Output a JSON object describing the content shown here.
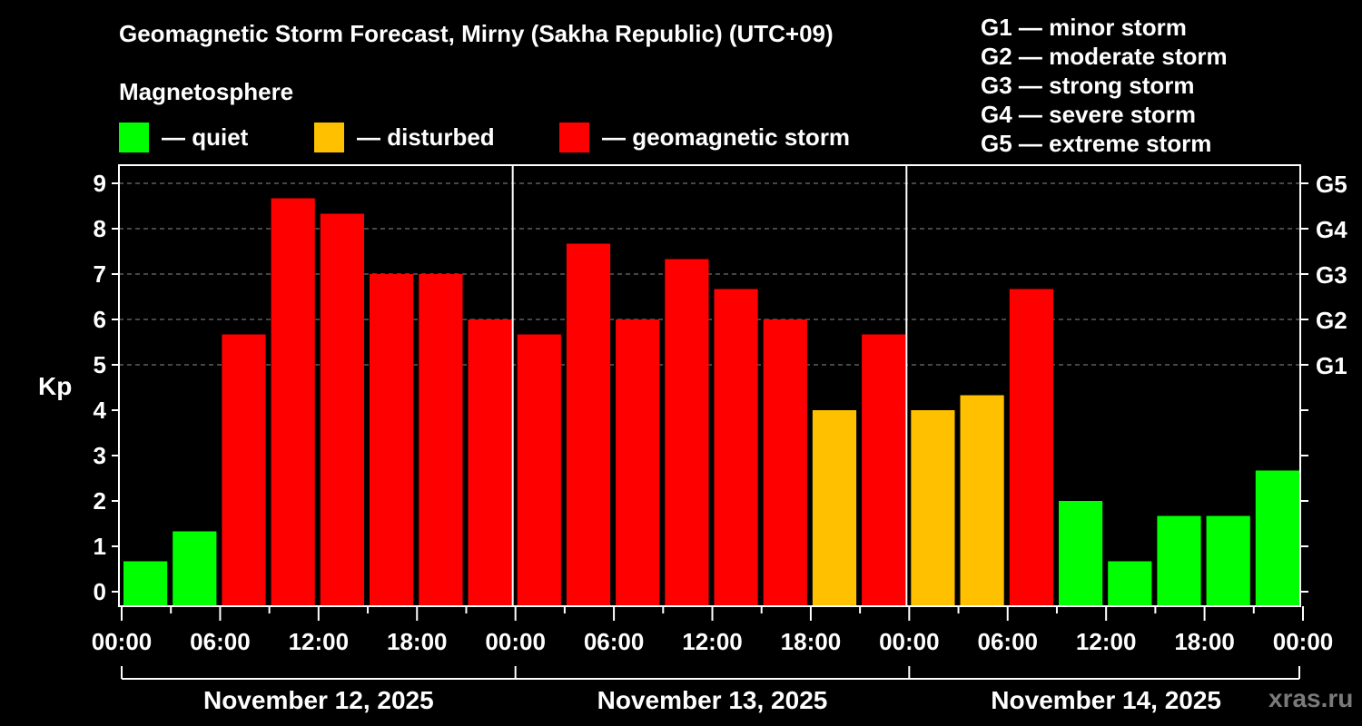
{
  "header": {
    "title": "Geomagnetic Storm Forecast, Mirny (Sakha Republic) (UTC+09)",
    "subtitle": "Magnetosphere"
  },
  "legend": {
    "items": [
      {
        "label": "— quiet",
        "color": "#00ff00"
      },
      {
        "label": "— disturbed",
        "color": "#ffc000"
      },
      {
        "label": "— geomagnetic storm",
        "color": "#ff0000"
      }
    ]
  },
  "storm_scale": {
    "items": [
      {
        "level": "G1",
        "label": "G1 — minor storm"
      },
      {
        "level": "G2",
        "label": "G2 — moderate storm"
      },
      {
        "level": "G3",
        "label": "G3 — strong storm"
      },
      {
        "level": "G4",
        "label": "G4 — severe storm"
      },
      {
        "level": "G5",
        "label": "G5 — extreme storm"
      }
    ]
  },
  "axis": {
    "ylabel": "Kp"
  },
  "watermark": "xras.ru",
  "chart_data": {
    "type": "bar",
    "title": "Geomagnetic Storm Forecast, Mirny (Sakha Republic) (UTC+09)",
    "xlabel": "",
    "ylabel": "Kp",
    "ylim": [
      0,
      9
    ],
    "yticks": [
      0,
      1,
      2,
      3,
      4,
      5,
      6,
      7,
      8,
      9
    ],
    "right_axis_ticks": [
      {
        "kp": 5,
        "label": "G1"
      },
      {
        "kp": 6,
        "label": "G2"
      },
      {
        "kp": 7,
        "label": "G3"
      },
      {
        "kp": 8,
        "label": "G4"
      },
      {
        "kp": 9,
        "label": "G5"
      }
    ],
    "grid": "dashed horizontal lines at Kp 5-9",
    "interval_hours": 3,
    "x_tick_labels": [
      "00:00",
      "06:00",
      "12:00",
      "18:00",
      "00:00",
      "06:00",
      "12:00",
      "18:00",
      "00:00",
      "06:00",
      "12:00",
      "18:00",
      "00:00"
    ],
    "days": [
      "November 12, 2025",
      "November 13, 2025",
      "November 14, 2025"
    ],
    "colors": {
      "quiet": "#00ff00",
      "disturbed": "#ffc000",
      "storm": "#ff0000"
    },
    "categories": [
      "Nov 12 00-03",
      "Nov 12 03-06",
      "Nov 12 06-09",
      "Nov 12 09-12",
      "Nov 12 12-15",
      "Nov 12 15-18",
      "Nov 12 18-21",
      "Nov 12 21-24",
      "Nov 13 00-03",
      "Nov 13 03-06",
      "Nov 13 06-09",
      "Nov 13 09-12",
      "Nov 13 12-15",
      "Nov 13 15-18",
      "Nov 13 18-21",
      "Nov 13 21-24",
      "Nov 14 00-03",
      "Nov 14 03-06",
      "Nov 14 06-09",
      "Nov 14 09-12",
      "Nov 14 12-15",
      "Nov 14 15-18",
      "Nov 14 18-21",
      "Nov 14 21-24"
    ],
    "values": [
      0.67,
      1.33,
      5.67,
      8.67,
      8.33,
      7.0,
      7.0,
      6.0,
      5.67,
      7.67,
      6.0,
      7.33,
      6.67,
      6.0,
      4.0,
      5.67,
      4.0,
      4.33,
      6.67,
      2.0,
      0.67,
      1.67,
      1.67,
      2.67
    ],
    "status": [
      "quiet",
      "quiet",
      "storm",
      "storm",
      "storm",
      "storm",
      "storm",
      "storm",
      "storm",
      "storm",
      "storm",
      "storm",
      "storm",
      "storm",
      "disturbed",
      "storm",
      "disturbed",
      "disturbed",
      "storm",
      "quiet",
      "quiet",
      "quiet",
      "quiet",
      "quiet"
    ]
  }
}
